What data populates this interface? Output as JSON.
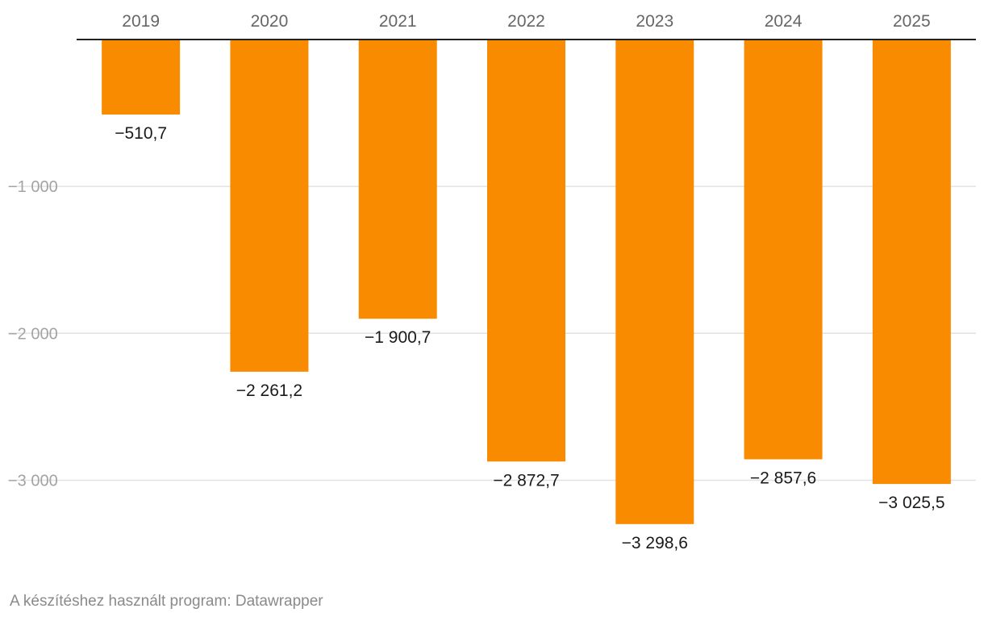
{
  "chart_data": {
    "type": "bar",
    "categories": [
      "2019",
      "2020",
      "2021",
      "2022",
      "2023",
      "2024",
      "2025"
    ],
    "values": [
      -510.7,
      -2261.2,
      -1900.7,
      -2872.7,
      -3298.6,
      -2857.6,
      -3025.5
    ],
    "value_labels": [
      "−510,7",
      "−2 261,2",
      "−1 900,7",
      "−2 872,7",
      "−3 298,6",
      "−2 857,6",
      "−3 025,5"
    ],
    "y_ticks": [
      -1000,
      -2000,
      -3000
    ],
    "y_tick_labels": [
      "−1 000",
      "−2 000",
      "−3 000"
    ],
    "ylim": [
      -3400,
      0
    ],
    "x_axis_position": "top",
    "grid": true,
    "bar_color": "#f88b00",
    "title": "",
    "xlabel": "",
    "ylabel": ""
  },
  "footer": {
    "credit": "A készítéshez használt program: Datawrapper"
  }
}
